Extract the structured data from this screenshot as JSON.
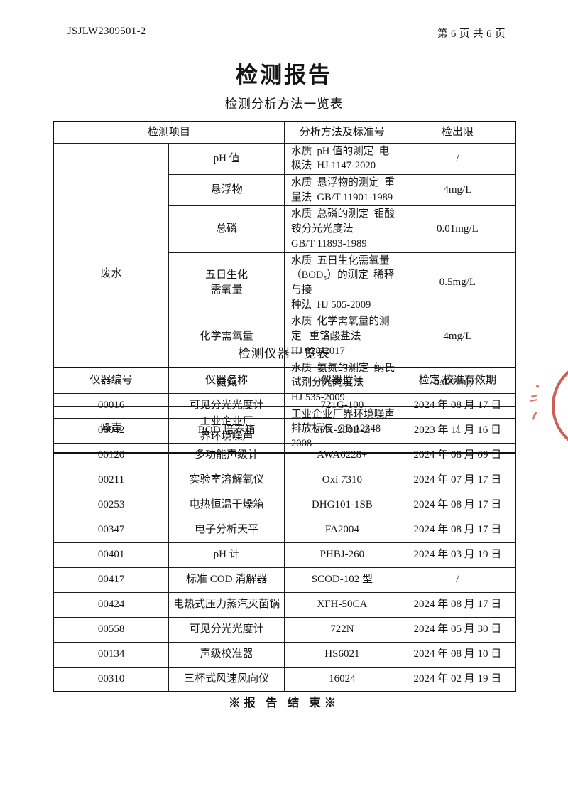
{
  "page": {
    "doc_number": "JSJLW2309501-2",
    "page_info": "第 6 页 共 6 页",
    "title": "检测报告",
    "end_note": "※报 告 结 束※"
  },
  "colors": {
    "stamp_red": "#c64a3c"
  },
  "methods_table": {
    "title": "检测分析方法一览表",
    "headers": {
      "item": "检测项目",
      "method": "分析方法及标准号",
      "limit": "检出限"
    },
    "groups": [
      {
        "name": "废水",
        "rows": [
          {
            "item": "pH 值",
            "method": "水质  pH 值的测定  电极法  HJ 1147-2020",
            "limit": "/"
          },
          {
            "item": "悬浮物",
            "method": "水质  悬浮物的测定  重量法  GB/T 11901-1989",
            "limit": "4mg/L"
          },
          {
            "item": "总磷",
            "method": "水质  总磷的测定  钼酸铵分光光度法\nGB/T 11893-1989",
            "limit": "0.01mg/L"
          },
          {
            "item": "五日生化\n需氧量",
            "method": "水质  五日生化需氧量（BOD₅）的测定  稀释与接\n种法  HJ 505-2009",
            "limit": "0.5mg/L"
          },
          {
            "item": "化学需氧量",
            "method": "水质  化学需氧量的测定   重铬酸盐法\nHJ 828-2017",
            "limit": "4mg/L"
          },
          {
            "item": "氨氮",
            "method": "水质  氨氮的测定  纳氏试剂分光光度法\nHJ 535-2009",
            "limit": "0.025mg/L"
          }
        ]
      },
      {
        "name": "噪声",
        "rows": [
          {
            "item": "工业企业厂\n界环境噪声",
            "method": "工业企业厂界环境噪声排放标准  GB 12348-2008",
            "limit": "/"
          }
        ]
      }
    ]
  },
  "instruments_table": {
    "title": "检测仪器一览表",
    "headers": [
      "仪器编号",
      "仪器名称",
      "仪器型号",
      "检定/校准有效期"
    ],
    "rows": [
      [
        "00016",
        "可见分光光度计",
        "721G-100",
        "2024 年 08 月 17 日"
      ],
      [
        "00042",
        "BOD 培养箱",
        "SPX-250B-Z",
        "2023 年 11 月 16 日"
      ],
      [
        "00120",
        "多功能声级计",
        "AWA6228+",
        "2024 年 08 月 09 日"
      ],
      [
        "00211",
        "实验室溶解氧仪",
        "Oxi 7310",
        "2024 年 07 月 17 日"
      ],
      [
        "00253",
        "电热恒温干燥箱",
        "DHG101-1SB",
        "2024 年 08 月 17 日"
      ],
      [
        "00347",
        "电子分析天平",
        "FA2004",
        "2024 年 08 月 17 日"
      ],
      [
        "00401",
        "pH 计",
        "PHBJ-260",
        "2024 年 03 月 19 日"
      ],
      [
        "00417",
        "标准 COD 消解器",
        "SCOD-102 型",
        "/"
      ],
      [
        "00424",
        "电热式压力蒸汽灭菌锅",
        "XFH-50CA",
        "2024 年 08 月 17 日"
      ],
      [
        "00558",
        "可见分光光度计",
        "722N",
        "2024 年 05 月 30 日"
      ],
      [
        "00134",
        "声级校准器",
        "HS6021",
        "2024 年 08 月 10 日"
      ],
      [
        "00310",
        "三杯式风速风向仪",
        "16024",
        "2024 年 02 月 19 日"
      ]
    ]
  }
}
